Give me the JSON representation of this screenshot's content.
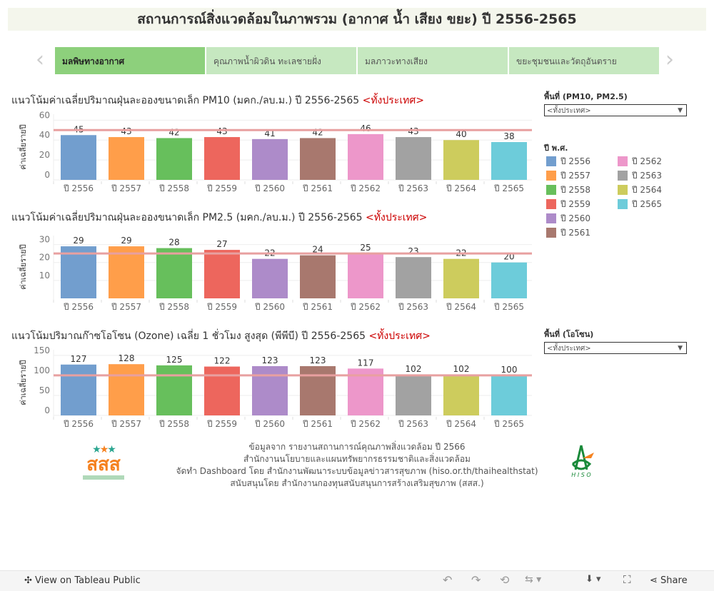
{
  "title": "สถานการณ์สิ่งแวดล้อมในภาพรวม (อากาศ น้ำ เสียง ขยะ) ปี 2556-2565",
  "tabs": [
    {
      "label": "มลพิษทางอากาศ",
      "active": true
    },
    {
      "label": "คุณภาพน้ำผิวดิน ทะเลชายฝั่ง",
      "active": false
    },
    {
      "label": "มลภาวะทางเสียง",
      "active": false
    },
    {
      "label": "ขยะชุมชนและวัตถุอันตราย",
      "active": false
    }
  ],
  "filters": {
    "pm_label": "พื้นที่ (PM10, PM2.5)",
    "pm_value": "<ทั้งประเทศ>",
    "ozone_label": "พื้นที่ (โอโซน)",
    "ozone_value": "<ทั้งประเทศ>"
  },
  "legend": {
    "title": "ปี พ.ศ.",
    "items": [
      {
        "label": "ปี 2556",
        "color": "#729ece"
      },
      {
        "label": "ปี 2557",
        "color": "#ff9e4a"
      },
      {
        "label": "ปี 2558",
        "color": "#67bf5c"
      },
      {
        "label": "ปี 2559",
        "color": "#ed665d"
      },
      {
        "label": "ปี 2560",
        "color": "#ad8bc9"
      },
      {
        "label": "ปี 2561",
        "color": "#a8786e"
      },
      {
        "label": "ปี 2562",
        "color": "#ed97ca"
      },
      {
        "label": "ปี 2563",
        "color": "#a2a2a2"
      },
      {
        "label": "ปี 2564",
        "color": "#cdcc5d"
      },
      {
        "label": "ปี 2565",
        "color": "#6dccda"
      }
    ]
  },
  "chart_data": [
    {
      "type": "bar",
      "title": "แนวโน้มค่าเฉลี่ยปริมาณฝุ่นละอองขนาดเล็ก PM10 (มคก./ลบ.ม.) ปี 2556-2565 ",
      "title_highlight": "<ทั้งประเทศ>",
      "ylabel": "ค่าเฉลี่ยรายปี",
      "categories": [
        "ปี 2556",
        "ปี 2557",
        "ปี 2558",
        "ปี 2559",
        "ปี 2560",
        "ปี 2561",
        "ปี 2562",
        "ปี 2563",
        "ปี 2564",
        "ปี 2565"
      ],
      "values": [
        45,
        43,
        42,
        43,
        41,
        42,
        46,
        43,
        40,
        38
      ],
      "yticks": [
        0,
        20,
        40,
        60
      ],
      "ylim": [
        0,
        66
      ],
      "reference_line": 50,
      "reference_color": "#e8a0a0",
      "grid": true
    },
    {
      "type": "bar",
      "title": "แนวโน้มค่าเฉลี่ยปริมาณฝุ่นละอองขนาดเล็ก PM2.5 (มคก./ลบ.ม.) ปี 2556-2565 ",
      "title_highlight": "<ทั้งประเทศ>",
      "ylabel": "ค่าเฉลี่ยรายปี",
      "categories": [
        "ปี 2556",
        "ปี 2557",
        "ปี 2558",
        "ปี 2559",
        "ปี 2560",
        "ปี 2561",
        "ปี 2562",
        "ปี 2563",
        "ปี 2564",
        "ปี 2565"
      ],
      "values": [
        29,
        29,
        28,
        27,
        22,
        24,
        25,
        23,
        22,
        20
      ],
      "yticks": [
        10,
        20,
        30
      ],
      "ylim": [
        0,
        35
      ],
      "reference_line": 25,
      "reference_color": "#e8a0a0",
      "grid": true
    },
    {
      "type": "bar",
      "title": "แนวโน้มปริมาณก๊าซโอโซน (Ozone) เฉลี่ย 1 ชั่วโมง สูงสุด (พีพีบี) ปี 2556-2565 ",
      "title_highlight": "<ทั้งประเทศ>",
      "ylabel": "ค่าเฉลี่ยรายปี",
      "categories": [
        "ปี 2556",
        "ปี 2557",
        "ปี 2558",
        "ปี 2559",
        "ปี 2560",
        "ปี 2561",
        "ปี 2562",
        "ปี 2563",
        "ปี 2564",
        "ปี 2565"
      ],
      "values": [
        127,
        128,
        125,
        122,
        123,
        123,
        117,
        102,
        102,
        100
      ],
      "yticks": [
        0,
        50,
        100,
        150
      ],
      "ylim": [
        0,
        164
      ],
      "reference_line": 100,
      "reference_color": "#e8a0a0",
      "grid": true
    }
  ],
  "footer": {
    "lines": [
      "ข้อมูลจาก รายงานสถานการณ์คุณภาพสิ่งแวดล้อม ปี 2566",
      "สำนักงานนโยบายและแผนทรัพยากรธรรมชาติและสิ่งแวดล้อม",
      "จัดทำ Dashboard โดย สำนักงานพัฒนาระบบข้อมูลข่าวสารสุขภาพ (hiso.or.th/thaihealthstat)",
      "สนับสนุนโดย สำนักงานกองทุนสนับสนุนการสร้างเสริมสุขภาพ (สสส.)"
    ],
    "logo_left": "สสส",
    "logo_right": "HISO"
  },
  "toolbar": {
    "view_label": "View on Tableau Public",
    "share_label": "Share"
  }
}
